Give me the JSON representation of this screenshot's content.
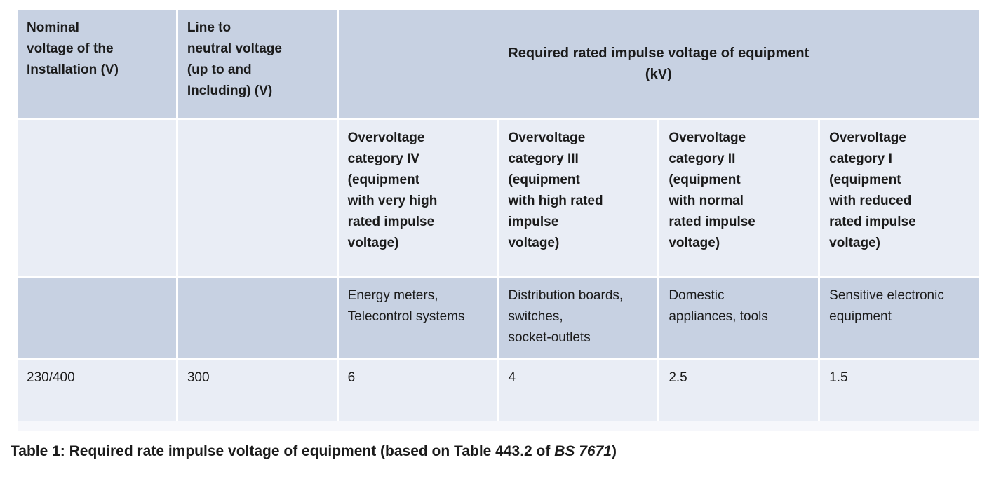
{
  "colors": {
    "band_dark": "#c7d1e2",
    "band_light": "#e9edf5",
    "text": "#1b1b1b",
    "page_bg": "#ffffff"
  },
  "table": {
    "column_headers": {
      "nominal_voltage": "Nominal\nvoltage of the\nInstallation (V)",
      "line_to_neutral": "Line to\nneutral voltage\n(up to and\nIncluding) (V)",
      "impulse_group": "Required rated impulse voltage of equipment\n(kV)"
    },
    "category_headers": [
      "Overvoltage\ncategory IV\n(equipment\nwith very high\nrated impulse\nvoltage)",
      "Overvoltage\ncategory III\n(equipment\nwith high rated\nimpulse\nvoltage)",
      "Overvoltage\ncategory II\n(equipment\nwith normal\nrated impulse\nvoltage)",
      "Overvoltage\ncategory I\n(equipment\nwith reduced\nrated impulse\nvoltage)"
    ],
    "example_rows": [
      "Energy meters,\nTelecontrol systems",
      "Distribution boards,\nswitches,\nsocket-outlets",
      "Domestic\nappliances, tools",
      "Sensitive electronic\nequipment"
    ],
    "data_row": {
      "nominal_voltage": "230/400",
      "line_to_neutral": "300",
      "impulse_values": [
        "6",
        "4",
        "2.5",
        "1.5"
      ]
    }
  },
  "caption": {
    "prefix": "Table 1: Required rate impulse voltage of equipment (based on Table 443.2 of ",
    "emphasis": "BS 7671",
    "suffix": ")"
  }
}
